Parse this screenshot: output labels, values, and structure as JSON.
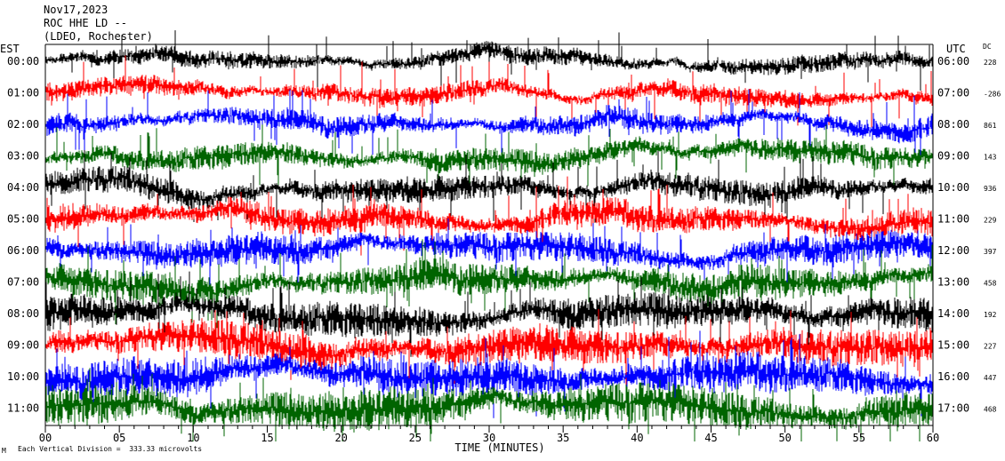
{
  "header": {
    "date": "Nov17,2023",
    "station": "ROC HHE LD --",
    "network": "(LDEO, Rochester)"
  },
  "left_axis_title": "EST",
  "right_axis_title": "UTC",
  "dc_title": "DC",
  "footer": {
    "scale_note": "Each Vertical Division =  333.33 microvolts",
    "corner_mark": "M"
  },
  "chart_data": {
    "type": "line",
    "title": "",
    "xlabel": "TIME (MINUTES)",
    "ylabel": "",
    "xlim": [
      0,
      60
    ],
    "x_ticks": [
      "00",
      "05",
      "10",
      "15",
      "20",
      "25",
      "30",
      "35",
      "40",
      "45",
      "50",
      "55",
      "60"
    ],
    "x_tick_values": [
      0,
      5,
      10,
      15,
      20,
      25,
      30,
      35,
      40,
      45,
      50,
      55,
      60
    ],
    "grid": false,
    "color_cycle": [
      "#000000",
      "#ff0000",
      "#0000ff",
      "#006400"
    ],
    "traces": [
      {
        "est": "00:00",
        "utc": "06:00",
        "dc": "228",
        "color": "#000000"
      },
      {
        "est": "01:00",
        "utc": "07:00",
        "dc": "-286",
        "color": "#ff0000"
      },
      {
        "est": "02:00",
        "utc": "08:00",
        "dc": "861",
        "color": "#0000ff"
      },
      {
        "est": "03:00",
        "utc": "09:00",
        "dc": "143",
        "color": "#006400"
      },
      {
        "est": "04:00",
        "utc": "10:00",
        "dc": "936",
        "color": "#000000"
      },
      {
        "est": "05:00",
        "utc": "11:00",
        "dc": "229",
        "color": "#ff0000"
      },
      {
        "est": "06:00",
        "utc": "12:00",
        "dc": "397",
        "color": "#0000ff"
      },
      {
        "est": "07:00",
        "utc": "13:00",
        "dc": "458",
        "color": "#006400"
      },
      {
        "est": "08:00",
        "utc": "14:00",
        "dc": "192",
        "color": "#000000"
      },
      {
        "est": "09:00",
        "utc": "15:00",
        "dc": "227",
        "color": "#ff0000"
      },
      {
        "est": "10:00",
        "utc": "16:00",
        "dc": "447",
        "color": "#0000ff"
      },
      {
        "est": "11:00",
        "utc": "17:00",
        "dc": "468",
        "color": "#006400"
      }
    ]
  }
}
